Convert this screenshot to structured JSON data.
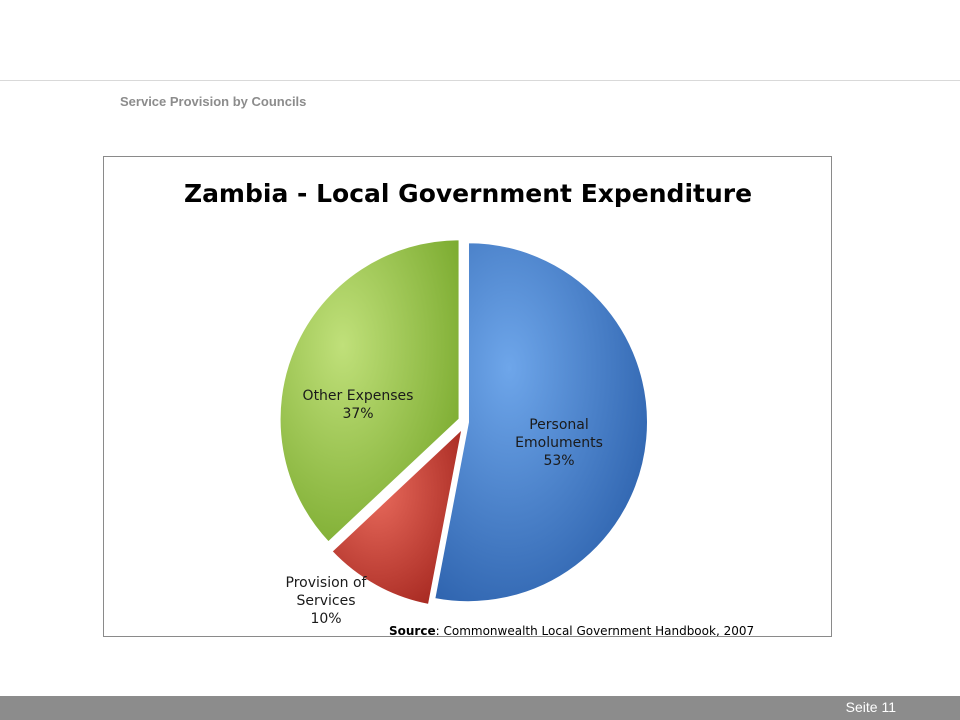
{
  "header": {
    "section_title": "Service Provision by Councils"
  },
  "chart_data": {
    "type": "pie",
    "title": "Zambia - Local Government Expenditure",
    "slices": [
      {
        "name": "Personal Emoluments",
        "label_lines": [
          "Personal",
          "Emoluments"
        ],
        "value": 53,
        "value_label": "53%",
        "color": "#3a78c8",
        "exploded": false
      },
      {
        "name": "Provision of Services",
        "label_lines": [
          "Provision of",
          "Services"
        ],
        "value": 10,
        "value_label": "10%",
        "color": "#c0392b",
        "exploded": true
      },
      {
        "name": "Other Expenses",
        "label_lines": [
          "Other Expenses"
        ],
        "value": 37,
        "value_label": "37%",
        "color": "#8fc13e",
        "exploded": true
      }
    ],
    "source_label": "Source",
    "source_text": ": Commonwealth Local  Government Handbook, 2007",
    "legend": "none"
  },
  "footer": {
    "page_number": "Seite 11",
    "bar_color": "#8c8c8c"
  }
}
